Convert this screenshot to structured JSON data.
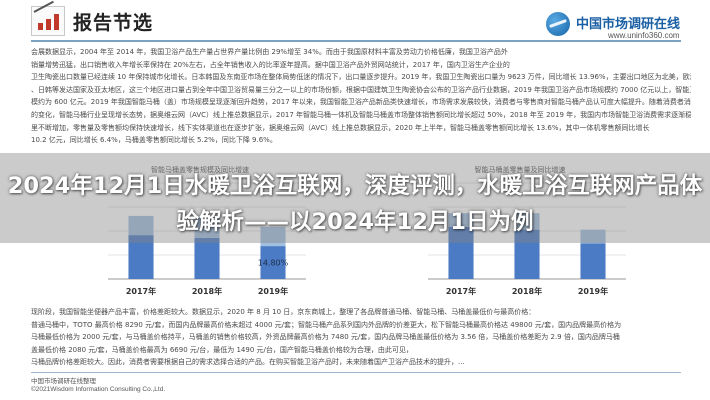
{
  "header": {
    "title": "报告节选",
    "brand_name": "中国市场调研在线",
    "brand_url": "www.uninfo360.com"
  },
  "paragraph_top": [
    "会展数据显示，2004 年至 2014 年，我国卫浴产品生产量占世界产量比例由 29%增至 34%。而由于我国原材料丰富及劳动力价格低廉，我国卫浴产品外",
    "销量增势迅猛，出口销售收入年增长率保持在 20%左右，占全年销售收入的比率逐年提高。据中国卫浴产品外贸网站统计，2017 年，国内卫浴生产企业的",
    "卫生陶瓷出口数量已经连续 10 年保持城市化增长。日本韩国及东南亚市场在整体局势低迷的情况下，出口量逐步提升。2019 年，我国卫生陶瓷出口量为 9623 万件，同比增长 13.96%，主要出口地区为北美，欧洲",
    "、日韩等发达国家及亚太地区，这三个地区进口量占到全年中国卫浴贸易量三分之一以上的市场份额，根据中国建筑卫生陶瓷协会公布的卫浴产品行业数据，2019 年我国卫浴产品市场规模约 7000 亿元以上，智能卫浴产品市场规",
    "模约为 600 亿元。2019 年我国智能马桶（盖）市场规模呈现逐渐回升趋势，2017 年以来，我国智能卫浴产品新品类快速增长，市场需求发展较快，消费者与零售商对智能马桶产品认可度大幅提升。随着消费者消费升级",
    "的变化，智能马桶行业呈现增长态势，据奥维云网（AVC）线上推总数据显示，2017 年智能马桶一体机及智能马桶盖市场整体销售额同比增长超过 50%，2018 年至 2019 年，我国内市场智能卫浴消费需求逐渐稳定，品牌进入发展",
    "里不断增加，零售量及零售额均保持快速增长，线下实体渠道也在逐步扩张，据奥维云网（AVC）线上推总数据显示，2020 年上半年，智能马桶盖零售额同比增长 13.6%，其中一体机零售额同比增长",
    "10.2 亿元，同比增长 6.4%，马桶盖零售额同比增长 5.2%，同比下降 9.6%。"
  ],
  "paragraph_bottom": [
    "现阶段，我国智能坐便器产品丰富，价格差距较大。数据显示，2020 年 8 月 10 日，京东商城上，整理了各品牌普通马桶、智能马桶、马桶盖最低价与最高价格：",
    "普通马桶中，TOTO 最高价格 8290 元/套，而国内品牌最高价格未超过 4000 元/套；智能马桶产品系列国内外品牌的价差更大，松下智能马桶最高价格达 49800 元/套，国内品牌最高价格为",
    "马桶最低价格为 2000 元/套，与马桶盖价格持平，马桶盖的销售价格较高，外资品牌最高价格为 7480 元/套，国内品牌马桶盖最低价格为 3.56 倍，马桶盖价格差距为 2.9 倍，国内品牌马桶",
    "盖最低价格 2080 元/套，马桶盖价格最高为 6690 元/台，最低为 1490 元/台，国产智能马桶盖价格较为合理，由此可见，",
    "马桶品牌价格差距较大。因此，消费者需要根据自己的需求选择合适的产品。在购买智能卫浴产品时，未来随着国产卫浴产品技术的提升，..."
  ],
  "charts": {
    "left_title": "智能马桶盖零售规模及同比增速",
    "right_title": "智能马桶盖零售量及同比增速"
  },
  "overlay_title": "2024年12月1日水暖卫浴互联网，深度评测，水暖卫浴互联网产品体验解析——以2024年12月1日为例",
  "footer": {
    "source": "中国市场调研在线整理",
    "copyright": "©2021Wisdom Information Consulting Co.,Ltd."
  },
  "chart_data": [
    {
      "type": "bar",
      "title": "智能马桶盖零售规模及同比增速",
      "categories": [
        "2017年",
        "2018年",
        "2019年"
      ],
      "series": [
        {
          "values": [
            32,
            30,
            24
          ],
          "color": "#4a7bc4"
        },
        {
          "values": [
            14,
            16,
            14
          ],
          "color": "#a3bfe0"
        }
      ],
      "annotations": [
        "14.80%"
      ],
      "ylim": [
        0,
        70
      ]
    },
    {
      "type": "bar",
      "title": "智能马桶盖零售量及同比增速",
      "categories": [
        "2017年",
        "2018年",
        "2019年"
      ],
      "series": [
        {
          "values": [
            38,
            36,
            26
          ],
          "color": "#4a7bc4"
        },
        {
          "values": [
            10,
            12,
            10
          ],
          "color": "#a3bfe0"
        }
      ],
      "ylim": [
        0,
        70
      ]
    }
  ]
}
